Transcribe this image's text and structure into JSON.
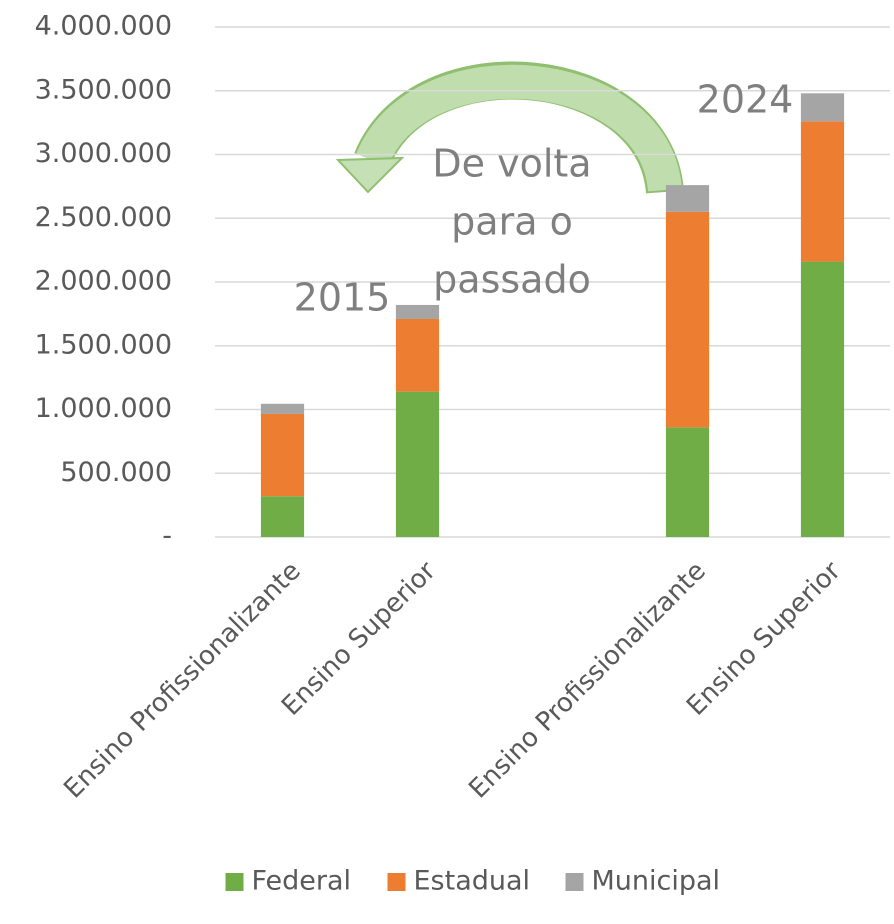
{
  "chart_data": {
    "type": "stacked_bar",
    "categories": [
      "Ensino Profissionalizante",
      "Ensino Superior",
      null,
      "Ensino Profissionalizante",
      "Ensino Superior"
    ],
    "series": [
      {
        "name": "Federal",
        "color": "#70ad47",
        "values": [
          320000,
          1140000,
          null,
          860000,
          2160000
        ]
      },
      {
        "name": "Estadual",
        "color": "#ed7d31",
        "values": [
          645000,
          570000,
          null,
          1690000,
          1100000
        ]
      },
      {
        "name": "Municipal",
        "color": "#a5a5a5",
        "values": [
          80000,
          110000,
          null,
          210000,
          220000
        ]
      }
    ],
    "ylim": [
      0,
      4000000
    ],
    "yticks": [
      {
        "value": 0,
        "label": "-"
      },
      {
        "value": 500000,
        "label": "500.000"
      },
      {
        "value": 1000000,
        "label": "1.000.000"
      },
      {
        "value": 1500000,
        "label": "1.500.000"
      },
      {
        "value": 2000000,
        "label": "2.000.000"
      },
      {
        "value": 2500000,
        "label": "2.500.000"
      },
      {
        "value": 3000000,
        "label": "3.000.000"
      },
      {
        "value": 3500000,
        "label": "3.500.000"
      },
      {
        "value": 4000000,
        "label": "4.000.000"
      }
    ],
    "grid": true,
    "legend": "bottom",
    "annotations": [
      {
        "lines": [
          "2015"
        ]
      },
      {
        "lines": [
          "2024"
        ]
      },
      {
        "lines": [
          "De volta",
          "para o",
          "passado"
        ]
      }
    ]
  }
}
